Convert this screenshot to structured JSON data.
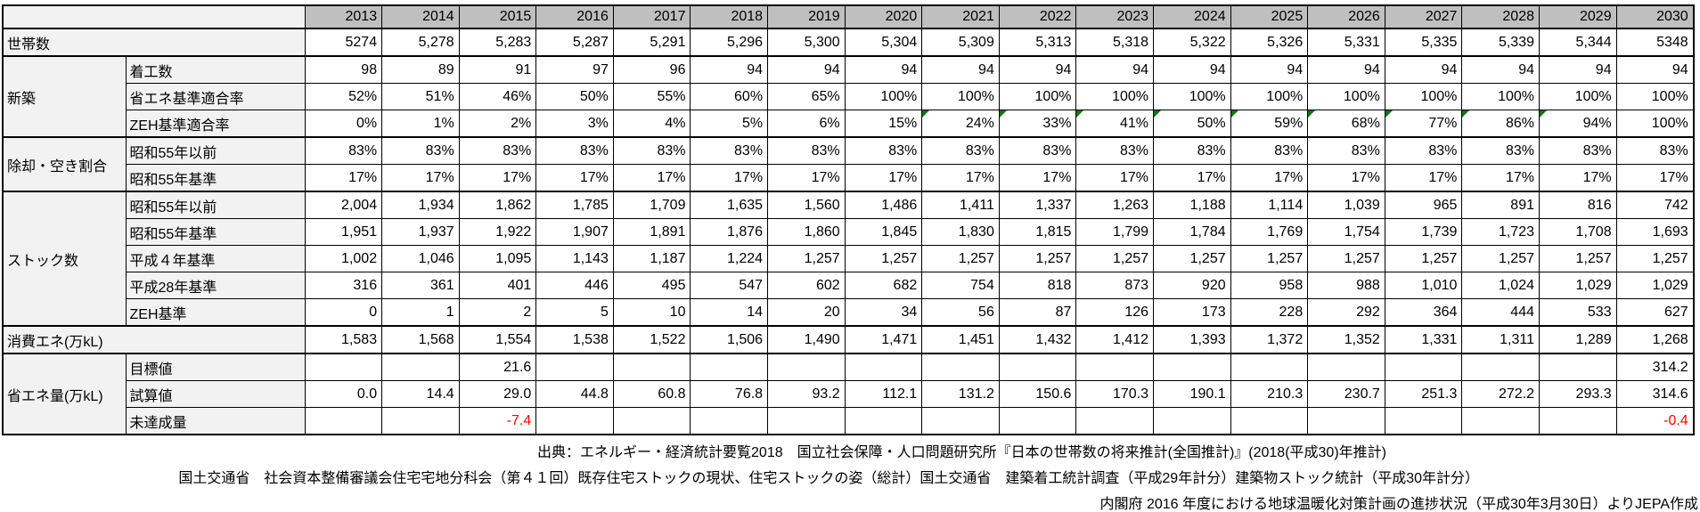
{
  "table": {
    "corner_label": "",
    "years": [
      "2013",
      "2014",
      "2015",
      "2016",
      "2017",
      "2018",
      "2019",
      "2020",
      "2021",
      "2022",
      "2023",
      "2024",
      "2025",
      "2026",
      "2027",
      "2028",
      "2029",
      "2030"
    ],
    "groups": [
      {
        "label": "世帯数",
        "full_width": true,
        "rows": [
          {
            "label": "",
            "values": [
              "5274",
              "5,278",
              "5,283",
              "5,287",
              "5,291",
              "5,296",
              "5,300",
              "5,304",
              "5,309",
              "5,313",
              "5,318",
              "5,322",
              "5,326",
              "5,331",
              "5,335",
              "5,339",
              "5,344",
              "5348"
            ]
          }
        ]
      },
      {
        "label": "新築",
        "full_width": false,
        "rows": [
          {
            "label": "着工数",
            "values": [
              "98",
              "89",
              "91",
              "97",
              "96",
              "94",
              "94",
              "94",
              "94",
              "94",
              "94",
              "94",
              "94",
              "94",
              "94",
              "94",
              "94",
              "94"
            ]
          },
          {
            "label": "省エネ基準適合率",
            "values": [
              "52%",
              "51%",
              "46%",
              "50%",
              "55%",
              "60%",
              "65%",
              "100%",
              "100%",
              "100%",
              "100%",
              "100%",
              "100%",
              "100%",
              "100%",
              "100%",
              "100%",
              "100%"
            ]
          },
          {
            "label": "ZEH基準適合率",
            "values": [
              "0%",
              "1%",
              "2%",
              "3%",
              "4%",
              "5%",
              "6%",
              "15%",
              "24%",
              "33%",
              "41%",
              "50%",
              "59%",
              "68%",
              "77%",
              "86%",
              "94%",
              "100%"
            ],
            "flags": [
              8,
              9,
              10,
              11,
              12,
              13,
              14,
              15,
              16
            ]
          }
        ]
      },
      {
        "label": "除却・空き割合",
        "full_width": false,
        "rows": [
          {
            "label": "昭和55年以前",
            "values": [
              "83%",
              "83%",
              "83%",
              "83%",
              "83%",
              "83%",
              "83%",
              "83%",
              "83%",
              "83%",
              "83%",
              "83%",
              "83%",
              "83%",
              "83%",
              "83%",
              "83%",
              "83%"
            ]
          },
          {
            "label": "昭和55年基準",
            "values": [
              "17%",
              "17%",
              "17%",
              "17%",
              "17%",
              "17%",
              "17%",
              "17%",
              "17%",
              "17%",
              "17%",
              "17%",
              "17%",
              "17%",
              "17%",
              "17%",
              "17%",
              "17%"
            ]
          }
        ]
      },
      {
        "label": "ストック数",
        "full_width": false,
        "rows": [
          {
            "label": "昭和55年以前",
            "values": [
              "2,004",
              "1,934",
              "1,862",
              "1,785",
              "1,709",
              "1,635",
              "1,560",
              "1,486",
              "1,411",
              "1,337",
              "1,263",
              "1,188",
              "1,114",
              "1,039",
              "965",
              "891",
              "816",
              "742"
            ]
          },
          {
            "label": "昭和55年基準",
            "values": [
              "1,951",
              "1,937",
              "1,922",
              "1,907",
              "1,891",
              "1,876",
              "1,860",
              "1,845",
              "1,830",
              "1,815",
              "1,799",
              "1,784",
              "1,769",
              "1,754",
              "1,739",
              "1,723",
              "1,708",
              "1,693"
            ]
          },
          {
            "label": "平成４年基準",
            "values": [
              "1,002",
              "1,046",
              "1,095",
              "1,143",
              "1,187",
              "1,224",
              "1,257",
              "1,257",
              "1,257",
              "1,257",
              "1,257",
              "1,257",
              "1,257",
              "1,257",
              "1,257",
              "1,257",
              "1,257",
              "1,257"
            ]
          },
          {
            "label": "平成28年基準",
            "values": [
              "316",
              "361",
              "401",
              "446",
              "495",
              "547",
              "602",
              "682",
              "754",
              "818",
              "873",
              "920",
              "958",
              "988",
              "1,010",
              "1,024",
              "1,029",
              "1,029"
            ]
          },
          {
            "label": "ZEH基準",
            "values": [
              "0",
              "1",
              "2",
              "5",
              "10",
              "14",
              "20",
              "34",
              "56",
              "87",
              "126",
              "173",
              "228",
              "292",
              "364",
              "444",
              "533",
              "627"
            ]
          }
        ]
      },
      {
        "label": "消費エネ(万kL)",
        "full_width": true,
        "rows": [
          {
            "label": "",
            "values": [
              "1,583",
              "1,568",
              "1,554",
              "1,538",
              "1,522",
              "1,506",
              "1,490",
              "1,471",
              "1,451",
              "1,432",
              "1,412",
              "1,393",
              "1,372",
              "1,352",
              "1,331",
              "1,311",
              "1,289",
              "1,268"
            ]
          }
        ]
      },
      {
        "label": "省エネ量(万kL)",
        "full_width": false,
        "rows": [
          {
            "label": "目標値",
            "values": [
              "",
              "",
              "21.6",
              "",
              "",
              "",
              "",
              "",
              "",
              "",
              "",
              "",
              "",
              "",
              "",
              "",
              "",
              "314.2"
            ]
          },
          {
            "label": "試算値",
            "values": [
              "0.0",
              "14.4",
              "29.0",
              "44.8",
              "60.8",
              "76.8",
              "93.2",
              "112.1",
              "131.2",
              "150.6",
              "170.3",
              "190.1",
              "210.3",
              "230.7",
              "251.3",
              "272.2",
              "293.3",
              "314.6"
            ]
          },
          {
            "label": "未達成量",
            "values": [
              "",
              "",
              "-7.4",
              "",
              "",
              "",
              "",
              "",
              "",
              "",
              "",
              "",
              "",
              "",
              "",
              "",
              "",
              "-0.4"
            ],
            "red": true
          }
        ]
      }
    ],
    "flag_color": "#0b7a0b",
    "negative_color": "#ff0000",
    "header_bg": "#bfbfbf",
    "label_bg": "#f2f2f2"
  },
  "footer": {
    "line1": "出典：エネルギー・経済統計要覧2018　国立社会保障・人口問題研究所『日本の世帯数の将来推計(全国推計)』(2018(平成30)年推計)",
    "line2": "国土交通省　社会資本整備審議会住宅宅地分科会（第４１回）既存住宅ストックの現状、住宅ストックの姿（総計）国土交通省　建築着工統計調査（平成29年計分）建築物ストック統計（平成30年計分）",
    "line3": "内閣府 2016 年度における地球温暖化対策計画の進捗状況（平成30年3月30日）よりJEPA作成"
  }
}
